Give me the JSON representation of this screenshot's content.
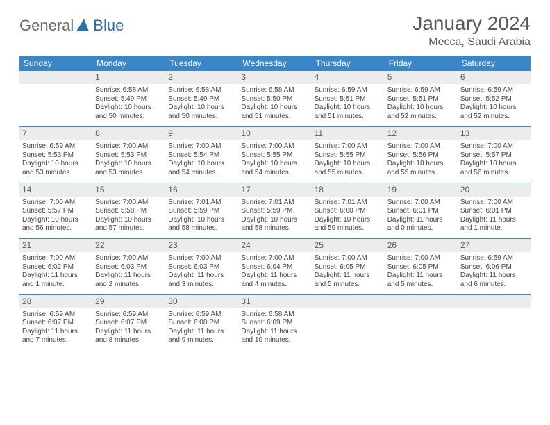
{
  "brand": {
    "text1": "General",
    "text2": "Blue"
  },
  "header": {
    "month_title": "January 2024",
    "location": "Mecca, Saudi Arabia"
  },
  "dow": [
    "Sunday",
    "Monday",
    "Tuesday",
    "Wednesday",
    "Thursday",
    "Friday",
    "Saturday"
  ],
  "colors": {
    "header_bg": "#3b86c6",
    "header_fg": "#ffffff",
    "daynum_bg": "#ececec",
    "text": "#595959",
    "rule": "#3b86c6"
  },
  "weeks": [
    [
      {
        "n": "",
        "sunrise": "",
        "sunset": "",
        "daylight1": "",
        "daylight2": ""
      },
      {
        "n": "1",
        "sunrise": "Sunrise: 6:58 AM",
        "sunset": "Sunset: 5:49 PM",
        "daylight1": "Daylight: 10 hours",
        "daylight2": "and 50 minutes."
      },
      {
        "n": "2",
        "sunrise": "Sunrise: 6:58 AM",
        "sunset": "Sunset: 5:49 PM",
        "daylight1": "Daylight: 10 hours",
        "daylight2": "and 50 minutes."
      },
      {
        "n": "3",
        "sunrise": "Sunrise: 6:58 AM",
        "sunset": "Sunset: 5:50 PM",
        "daylight1": "Daylight: 10 hours",
        "daylight2": "and 51 minutes."
      },
      {
        "n": "4",
        "sunrise": "Sunrise: 6:59 AM",
        "sunset": "Sunset: 5:51 PM",
        "daylight1": "Daylight: 10 hours",
        "daylight2": "and 51 minutes."
      },
      {
        "n": "5",
        "sunrise": "Sunrise: 6:59 AM",
        "sunset": "Sunset: 5:51 PM",
        "daylight1": "Daylight: 10 hours",
        "daylight2": "and 52 minutes."
      },
      {
        "n": "6",
        "sunrise": "Sunrise: 6:59 AM",
        "sunset": "Sunset: 5:52 PM",
        "daylight1": "Daylight: 10 hours",
        "daylight2": "and 52 minutes."
      }
    ],
    [
      {
        "n": "7",
        "sunrise": "Sunrise: 6:59 AM",
        "sunset": "Sunset: 5:53 PM",
        "daylight1": "Daylight: 10 hours",
        "daylight2": "and 53 minutes."
      },
      {
        "n": "8",
        "sunrise": "Sunrise: 7:00 AM",
        "sunset": "Sunset: 5:53 PM",
        "daylight1": "Daylight: 10 hours",
        "daylight2": "and 53 minutes."
      },
      {
        "n": "9",
        "sunrise": "Sunrise: 7:00 AM",
        "sunset": "Sunset: 5:54 PM",
        "daylight1": "Daylight: 10 hours",
        "daylight2": "and 54 minutes."
      },
      {
        "n": "10",
        "sunrise": "Sunrise: 7:00 AM",
        "sunset": "Sunset: 5:55 PM",
        "daylight1": "Daylight: 10 hours",
        "daylight2": "and 54 minutes."
      },
      {
        "n": "11",
        "sunrise": "Sunrise: 7:00 AM",
        "sunset": "Sunset: 5:55 PM",
        "daylight1": "Daylight: 10 hours",
        "daylight2": "and 55 minutes."
      },
      {
        "n": "12",
        "sunrise": "Sunrise: 7:00 AM",
        "sunset": "Sunset: 5:56 PM",
        "daylight1": "Daylight: 10 hours",
        "daylight2": "and 55 minutes."
      },
      {
        "n": "13",
        "sunrise": "Sunrise: 7:00 AM",
        "sunset": "Sunset: 5:57 PM",
        "daylight1": "Daylight: 10 hours",
        "daylight2": "and 56 minutes."
      }
    ],
    [
      {
        "n": "14",
        "sunrise": "Sunrise: 7:00 AM",
        "sunset": "Sunset: 5:57 PM",
        "daylight1": "Daylight: 10 hours",
        "daylight2": "and 56 minutes."
      },
      {
        "n": "15",
        "sunrise": "Sunrise: 7:00 AM",
        "sunset": "Sunset: 5:58 PM",
        "daylight1": "Daylight: 10 hours",
        "daylight2": "and 57 minutes."
      },
      {
        "n": "16",
        "sunrise": "Sunrise: 7:01 AM",
        "sunset": "Sunset: 5:59 PM",
        "daylight1": "Daylight: 10 hours",
        "daylight2": "and 58 minutes."
      },
      {
        "n": "17",
        "sunrise": "Sunrise: 7:01 AM",
        "sunset": "Sunset: 5:59 PM",
        "daylight1": "Daylight: 10 hours",
        "daylight2": "and 58 minutes."
      },
      {
        "n": "18",
        "sunrise": "Sunrise: 7:01 AM",
        "sunset": "Sunset: 6:00 PM",
        "daylight1": "Daylight: 10 hours",
        "daylight2": "and 59 minutes."
      },
      {
        "n": "19",
        "sunrise": "Sunrise: 7:00 AM",
        "sunset": "Sunset: 6:01 PM",
        "daylight1": "Daylight: 11 hours",
        "daylight2": "and 0 minutes."
      },
      {
        "n": "20",
        "sunrise": "Sunrise: 7:00 AM",
        "sunset": "Sunset: 6:01 PM",
        "daylight1": "Daylight: 11 hours",
        "daylight2": "and 1 minute."
      }
    ],
    [
      {
        "n": "21",
        "sunrise": "Sunrise: 7:00 AM",
        "sunset": "Sunset: 6:02 PM",
        "daylight1": "Daylight: 11 hours",
        "daylight2": "and 1 minute."
      },
      {
        "n": "22",
        "sunrise": "Sunrise: 7:00 AM",
        "sunset": "Sunset: 6:03 PM",
        "daylight1": "Daylight: 11 hours",
        "daylight2": "and 2 minutes."
      },
      {
        "n": "23",
        "sunrise": "Sunrise: 7:00 AM",
        "sunset": "Sunset: 6:03 PM",
        "daylight1": "Daylight: 11 hours",
        "daylight2": "and 3 minutes."
      },
      {
        "n": "24",
        "sunrise": "Sunrise: 7:00 AM",
        "sunset": "Sunset: 6:04 PM",
        "daylight1": "Daylight: 11 hours",
        "daylight2": "and 4 minutes."
      },
      {
        "n": "25",
        "sunrise": "Sunrise: 7:00 AM",
        "sunset": "Sunset: 6:05 PM",
        "daylight1": "Daylight: 11 hours",
        "daylight2": "and 5 minutes."
      },
      {
        "n": "26",
        "sunrise": "Sunrise: 7:00 AM",
        "sunset": "Sunset: 6:05 PM",
        "daylight1": "Daylight: 11 hours",
        "daylight2": "and 5 minutes."
      },
      {
        "n": "27",
        "sunrise": "Sunrise: 6:59 AM",
        "sunset": "Sunset: 6:06 PM",
        "daylight1": "Daylight: 11 hours",
        "daylight2": "and 6 minutes."
      }
    ],
    [
      {
        "n": "28",
        "sunrise": "Sunrise: 6:59 AM",
        "sunset": "Sunset: 6:07 PM",
        "daylight1": "Daylight: 11 hours",
        "daylight2": "and 7 minutes."
      },
      {
        "n": "29",
        "sunrise": "Sunrise: 6:59 AM",
        "sunset": "Sunset: 6:07 PM",
        "daylight1": "Daylight: 11 hours",
        "daylight2": "and 8 minutes."
      },
      {
        "n": "30",
        "sunrise": "Sunrise: 6:59 AM",
        "sunset": "Sunset: 6:08 PM",
        "daylight1": "Daylight: 11 hours",
        "daylight2": "and 9 minutes."
      },
      {
        "n": "31",
        "sunrise": "Sunrise: 6:58 AM",
        "sunset": "Sunset: 6:09 PM",
        "daylight1": "Daylight: 11 hours",
        "daylight2": "and 10 minutes."
      },
      {
        "n": "",
        "sunrise": "",
        "sunset": "",
        "daylight1": "",
        "daylight2": ""
      },
      {
        "n": "",
        "sunrise": "",
        "sunset": "",
        "daylight1": "",
        "daylight2": ""
      },
      {
        "n": "",
        "sunrise": "",
        "sunset": "",
        "daylight1": "",
        "daylight2": ""
      }
    ]
  ]
}
